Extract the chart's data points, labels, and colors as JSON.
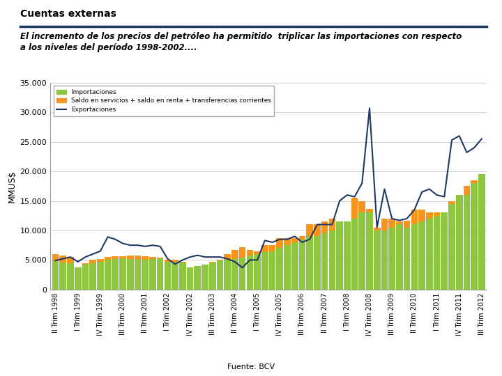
{
  "title": "Cuentas externas",
  "subtitle_line1": "El incremento de los precios del petróleo ha permitido  triplicar las importaciones con respecto",
  "subtitle_line2": "a los niveles del período 1998-2002....",
  "ylabel": "MMUS$",
  "source": "Fuente: BCV",
  "ylim": [
    0,
    35000
  ],
  "yticks": [
    0,
    5000,
    10000,
    15000,
    20000,
    25000,
    30000,
    35000
  ],
  "ytick_labels": [
    "0",
    "5.000",
    "10.000",
    "15.000",
    "20.000",
    "25.000",
    "30.000",
    "35.000"
  ],
  "legend_labels": [
    "Importaciones",
    "Saldo en servicios + saldo en renta + transferencias corrientes",
    "Exportaciones"
  ],
  "bar_color_importaciones": "#8DC63F",
  "bar_color_saldo": "#F7941D",
  "line_color_exportaciones": "#1F3864",
  "title_bar_color": "#1F3864",
  "importaciones": [
    4800,
    4600,
    4500,
    3800,
    4200,
    4500,
    4700,
    5100,
    5200,
    5300,
    5200,
    5000,
    5100,
    5200,
    5300,
    4700,
    4700,
    4600,
    3800,
    4000,
    4200,
    4600,
    4900,
    5000,
    5200,
    5400,
    5700,
    6000,
    6300,
    6500,
    7000,
    7500,
    8000,
    8500,
    9000,
    9000,
    9500,
    10000,
    11500,
    11500,
    12000,
    13000,
    13000,
    10000,
    10000,
    10500,
    11000,
    10500,
    11000,
    11500,
    12000,
    12500,
    13000,
    14500,
    16000,
    16000,
    18000,
    19500
  ],
  "saldo": [
    6000,
    5800,
    5500,
    3600,
    4500,
    5000,
    5200,
    5500,
    5600,
    5600,
    5700,
    5700,
    5600,
    5500,
    5400,
    5100,
    5000,
    4700,
    3800,
    3600,
    3700,
    4700,
    5000,
    6000,
    6700,
    7200,
    6700,
    6500,
    7500,
    7500,
    8700,
    8700,
    8700,
    9000,
    11000,
    11000,
    11500,
    12000,
    11500,
    11500,
    15500,
    15000,
    13600,
    10500,
    12000,
    12000,
    11500,
    11700,
    13500,
    13500,
    13000,
    13000,
    12800,
    15000,
    16000,
    17500,
    18500,
    19500
  ],
  "exportaciones": [
    4900,
    5200,
    5500,
    4700,
    5500,
    6000,
    6500,
    8900,
    8500,
    7800,
    7500,
    7500,
    7300,
    7500,
    7300,
    5200,
    4300,
    5000,
    5500,
    5800,
    5500,
    5500,
    5500,
    5200,
    4700,
    3700,
    5000,
    5000,
    8300,
    8000,
    8500,
    8500,
    9000,
    8000,
    8500,
    11000,
    11000,
    11000,
    15000,
    16000,
    15700,
    18000,
    30700,
    10500,
    17000,
    12000,
    11700,
    12000,
    13500,
    16500,
    17000,
    16000,
    15700,
    25300,
    26000,
    23200,
    24000,
    25500
  ],
  "xtick_show_every": 3,
  "xtick_offset": 0
}
